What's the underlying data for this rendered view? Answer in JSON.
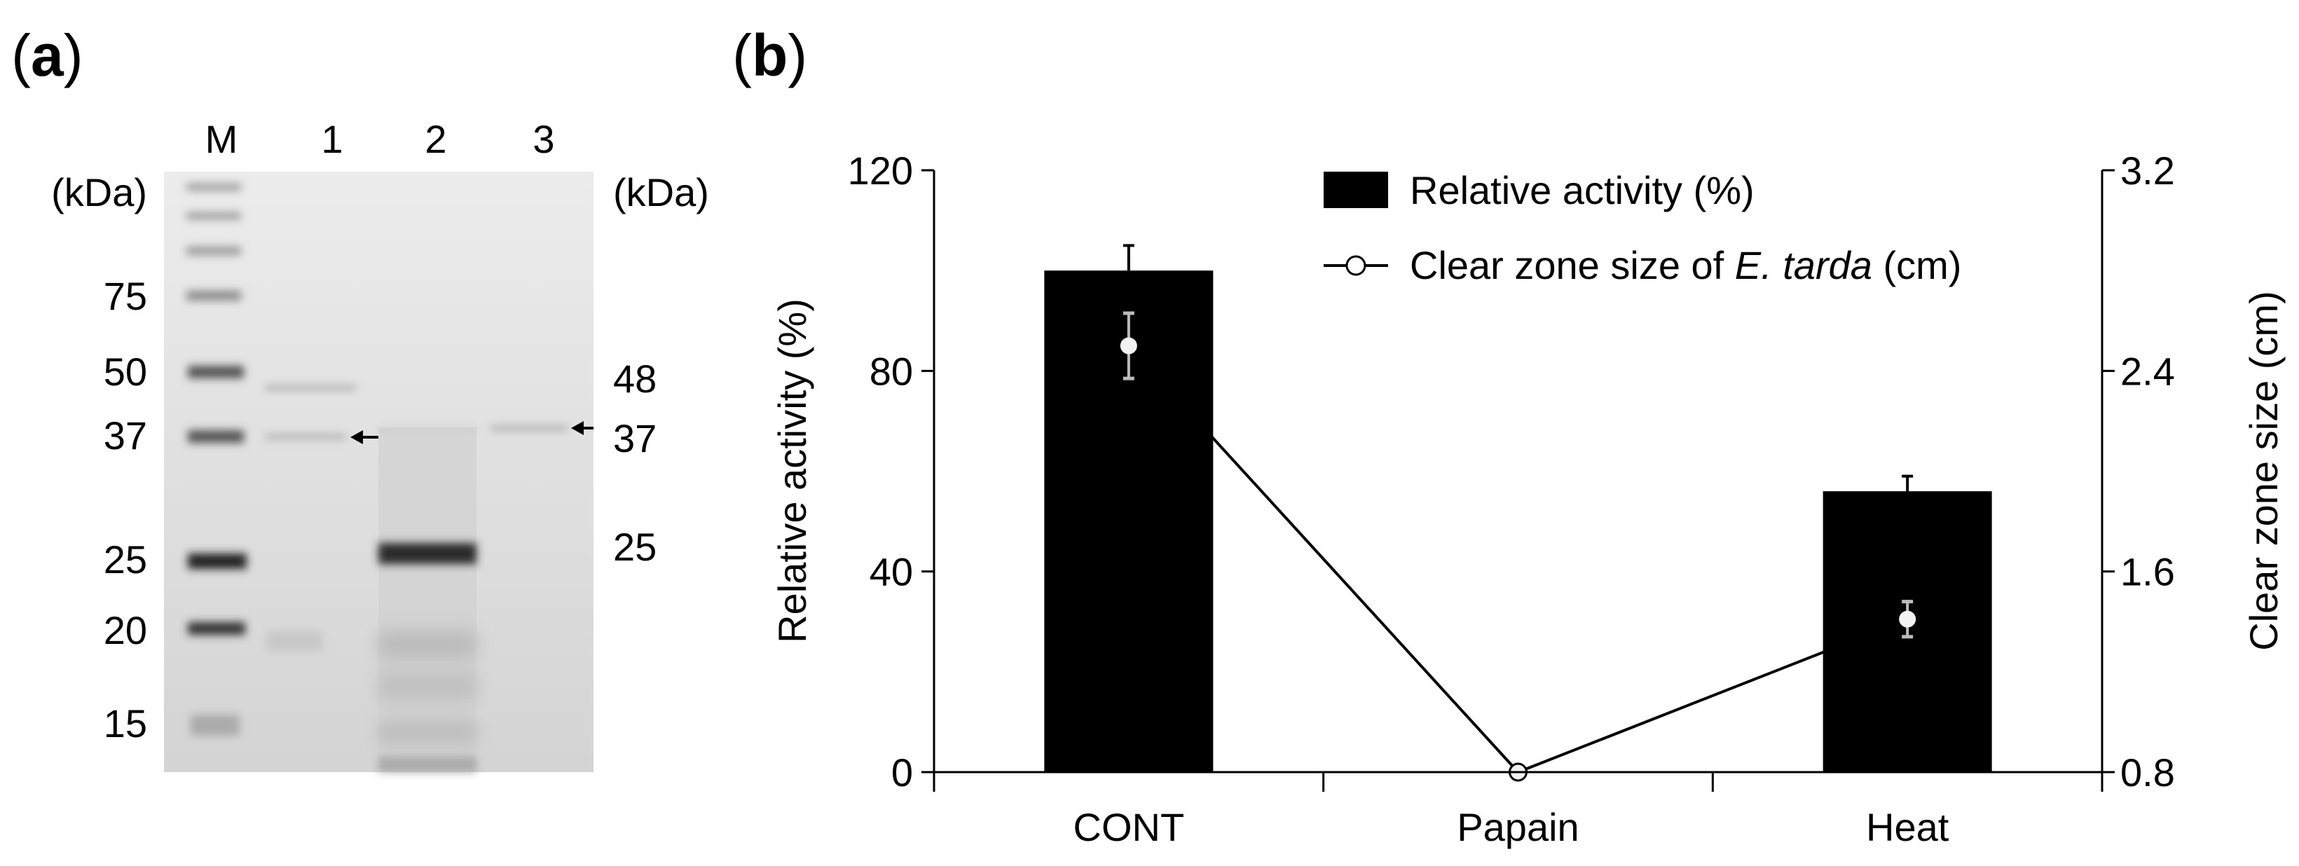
{
  "panel_a": {
    "label_open": "(",
    "label_letter": "a",
    "label_close": ")",
    "lane_labels": [
      "M",
      "1",
      "2",
      "3"
    ],
    "left_unit": "(kDa)",
    "right_unit": "(kDa)",
    "marker_labels": [
      "75",
      "50",
      "37",
      "25",
      "20",
      "15"
    ],
    "right_labels": [
      "48",
      "37",
      "25"
    ],
    "arrow_icon": "arrow-left-icon"
  },
  "panel_b": {
    "label_open": "(",
    "label_letter": "b",
    "label_close": ")"
  },
  "chart_data": {
    "type": "bar+line",
    "categories": [
      "CONT",
      "Papain",
      "Heat"
    ],
    "ylabel": "Relative activity (%)",
    "y2label": "Clear zone size (cm)",
    "ylim": [
      0,
      120
    ],
    "yticks": [
      "0",
      "40",
      "80",
      "120"
    ],
    "y2lim": [
      0.8,
      3.2
    ],
    "y2ticks": [
      "0.8",
      "1.6",
      "2.4",
      "3.2"
    ],
    "legend_position": "top-right",
    "series": [
      {
        "name": "Relative activity (%)",
        "type": "bar",
        "axis": "left",
        "values": [
          100,
          0,
          56
        ],
        "error": [
          5,
          0,
          3
        ],
        "color": "#000000"
      },
      {
        "name_prefix": "Clear zone size of ",
        "name_italic": "E. tarda",
        "name_suffix": " (cm)",
        "type": "line",
        "axis": "right",
        "marker": "open-circle",
        "values": [
          2.5,
          0.8,
          1.41
        ],
        "error": [
          0.13,
          0,
          0.07
        ],
        "color": "#000000"
      }
    ]
  }
}
